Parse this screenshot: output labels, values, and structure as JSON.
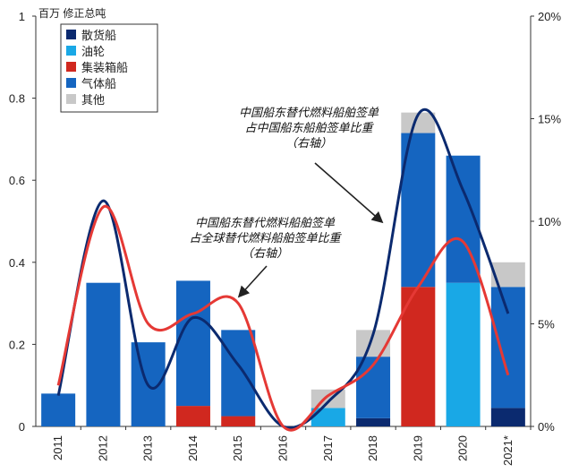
{
  "chart_data": {
    "type": "bar",
    "left_axis_unit": "百万 修正总吨",
    "categories": [
      "2011",
      "2012",
      "2013",
      "2014",
      "2015",
      "2016",
      "2017",
      "2018",
      "2019",
      "2020",
      "2021*"
    ],
    "y_left_ticks": [
      "0",
      "0.2",
      "0.4",
      "0.6",
      "0.8",
      "1"
    ],
    "y_right_ticks": [
      "0%",
      "5%",
      "10%",
      "15%",
      "20%"
    ],
    "ylim_left": [
      0,
      1
    ],
    "ylim_right": [
      0,
      20
    ],
    "stack_order": [
      "散货船",
      "油轮",
      "集装箱船",
      "气体船",
      "其他"
    ],
    "series": [
      {
        "name": "散货船",
        "color": "#0b2a6f",
        "values": [
          0,
          0,
          0,
          0,
          0,
          0,
          0,
          0.02,
          0,
          0,
          0.045
        ]
      },
      {
        "name": "油轮",
        "color": "#19a8e6",
        "values": [
          0,
          0,
          0,
          0,
          0,
          0,
          0.045,
          0,
          0,
          0.35,
          0
        ]
      },
      {
        "name": "集装箱船",
        "color": "#d0281f",
        "values": [
          0,
          0,
          0,
          0.05,
          0.025,
          0,
          0,
          0,
          0.34,
          0,
          0
        ]
      },
      {
        "name": "气体船",
        "color": "#1565c0",
        "values": [
          0.08,
          0.35,
          0.205,
          0.305,
          0.21,
          0,
          0,
          0.15,
          0.375,
          0.31,
          0.295
        ]
      },
      {
        "name": "其他",
        "color": "#c8c8c8",
        "values": [
          0,
          0,
          0,
          0,
          0,
          0,
          0.045,
          0.065,
          0.05,
          0,
          0.06
        ]
      }
    ],
    "lines": [
      {
        "axis": "right",
        "color": "#0b2a6f",
        "values": [
          1.5,
          11,
          2,
          5.3,
          3,
          0,
          1.2,
          4.5,
          15.2,
          11.5,
          5.5
        ]
      },
      {
        "axis": "right",
        "color": "#e53935",
        "values": [
          2,
          10.7,
          5,
          5.5,
          6,
          0,
          1.5,
          3,
          6.8,
          9,
          2.5
        ]
      }
    ],
    "annotations": [
      {
        "lines": [
          "中国船东替代燃料船舶签单",
          "占中国船东船舶签单比重",
          "（右轴）"
        ]
      },
      {
        "lines": [
          "中国船东替代燃料船舶签单",
          "占全球替代燃料船舶签单比重",
          "（右轴）"
        ]
      }
    ]
  }
}
